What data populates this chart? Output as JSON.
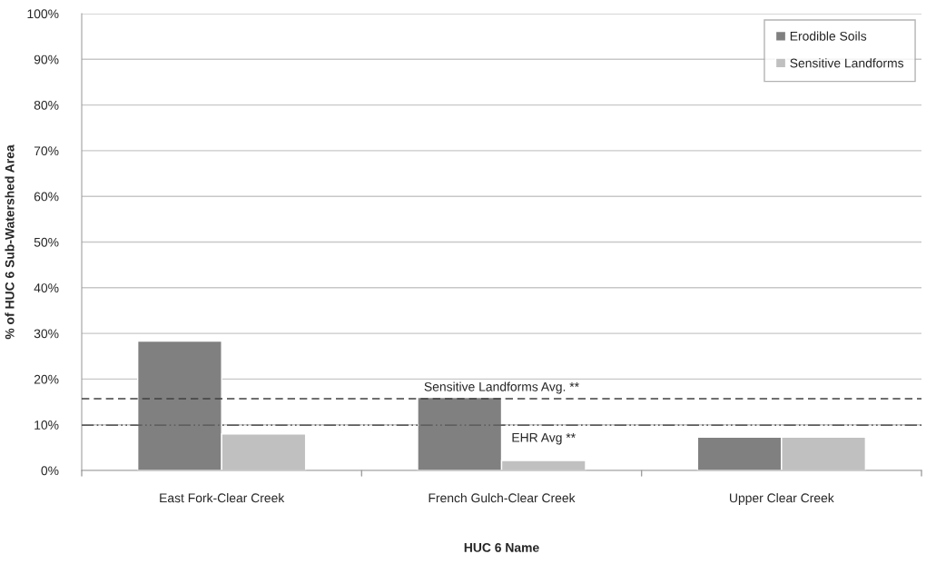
{
  "chart_data": {
    "type": "bar",
    "xlabel": "HUC 6 Name",
    "ylabel": "% of HUC 6 Sub-Watershed Area",
    "categories": [
      "East Fork-Clear Creek",
      "French Gulch-Clear Creek",
      "Upper Clear Creek"
    ],
    "series": [
      {
        "name": "Erodible Soils",
        "color": "#808080",
        "values": [
          28.3,
          16.0,
          7.3
        ]
      },
      {
        "name": "Sensitive Landforms",
        "color": "#c0c0c0",
        "values": [
          8.0,
          2.2,
          7.3
        ]
      }
    ],
    "ylim": [
      0,
      100
    ],
    "yticks": [
      {
        "value": 0,
        "label": "0%"
      },
      {
        "value": 10,
        "label": "10%"
      },
      {
        "value": 20,
        "label": "20%"
      },
      {
        "value": 30,
        "label": "30%"
      },
      {
        "value": 40,
        "label": "40%"
      },
      {
        "value": 50,
        "label": "50%"
      },
      {
        "value": 60,
        "label": "60%"
      },
      {
        "value": 70,
        "label": "70%"
      },
      {
        "value": 80,
        "label": "80%"
      },
      {
        "value": 90,
        "label": "90%"
      },
      {
        "value": 100,
        "label": "100%"
      }
    ],
    "ref_lines": [
      {
        "axis": "y",
        "value": 15.7,
        "label": "Sensitive Landforms Avg. **",
        "color": "#404040",
        "line_style": "dashed"
      },
      {
        "axis": "y",
        "value": 9.9,
        "label": "EHR Avg **",
        "color": "#606060",
        "line_style": "dashdotdot"
      }
    ],
    "grid": "y",
    "legend": "top right"
  }
}
